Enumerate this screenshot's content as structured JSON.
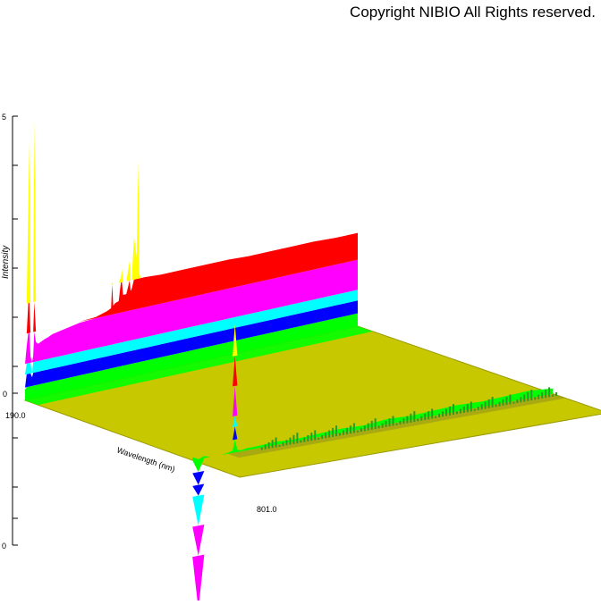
{
  "copyright": "Copyright NIBIO All Rights reserved.",
  "chart_data": {
    "type": "area",
    "title": "",
    "xlabel": "Wavelength (nm)",
    "ylabel": "Intensity",
    "xlim": [
      190.0,
      801.0
    ],
    "x_tick_labels": [
      "190.0",
      "801.0"
    ],
    "y_tick_labels": [
      "5",
      "0",
      "0"
    ],
    "grid": false,
    "legend": "none",
    "band_colors": [
      "#00ff00",
      "#0000ff",
      "#00ffff",
      "#ff00ff",
      "#ff0000",
      "#ffff00"
    ],
    "floor_color": "#c8c800",
    "series": [
      {
        "x": [
          190,
          193,
          196,
          198,
          200,
          203,
          205,
          207,
          210,
          214,
          218,
          222,
          226,
          232,
          240,
          260,
          290,
          320,
          340,
          348,
          350,
          352,
          356,
          362,
          366,
          368,
          370,
          376,
          382,
          384,
          386,
          390,
          395,
          398,
          400,
          402,
          410,
          440,
          480,
          520,
          560,
          600,
          640,
          680,
          720,
          760,
          801
        ],
        "values": [
          0.1,
          0.5,
          1.8,
          2.4,
          0.4,
          0.2,
          0.4,
          2.6,
          0.52,
          0.5,
          0.51,
          0.52,
          0.53,
          0.54,
          0.56,
          0.58,
          0.61,
          0.63,
          0.66,
          0.68,
          0.92,
          0.7,
          0.72,
          0.73,
          0.95,
          1.02,
          0.78,
          0.78,
          1.08,
          0.8,
          0.82,
          1.3,
          1.1,
          2.0,
          0.95,
          0.9,
          0.9,
          0.89,
          0.89,
          0.89,
          0.89,
          0.88,
          0.88,
          0.88,
          0.88,
          0.87,
          0.87
        ]
      },
      {
        "x": [
          190,
          200,
          210,
          220,
          230,
          240,
          250,
          258,
          262,
          266,
          272,
          282,
          300,
          330,
          360,
          400,
          440,
          480,
          520,
          560,
          600,
          640,
          680,
          720,
          760,
          801
        ],
        "values": [
          0.03,
          -1.4,
          0.02,
          0.0,
          0.0,
          0.0,
          0.01,
          0.02,
          1.2,
          0.02,
          0.01,
          0.02,
          0.02,
          0.03,
          0.02,
          0.03,
          0.04,
          0.03,
          0.05,
          0.04,
          0.05,
          0.06,
          0.05,
          0.06,
          0.07,
          0.05
        ]
      }
    ]
  }
}
